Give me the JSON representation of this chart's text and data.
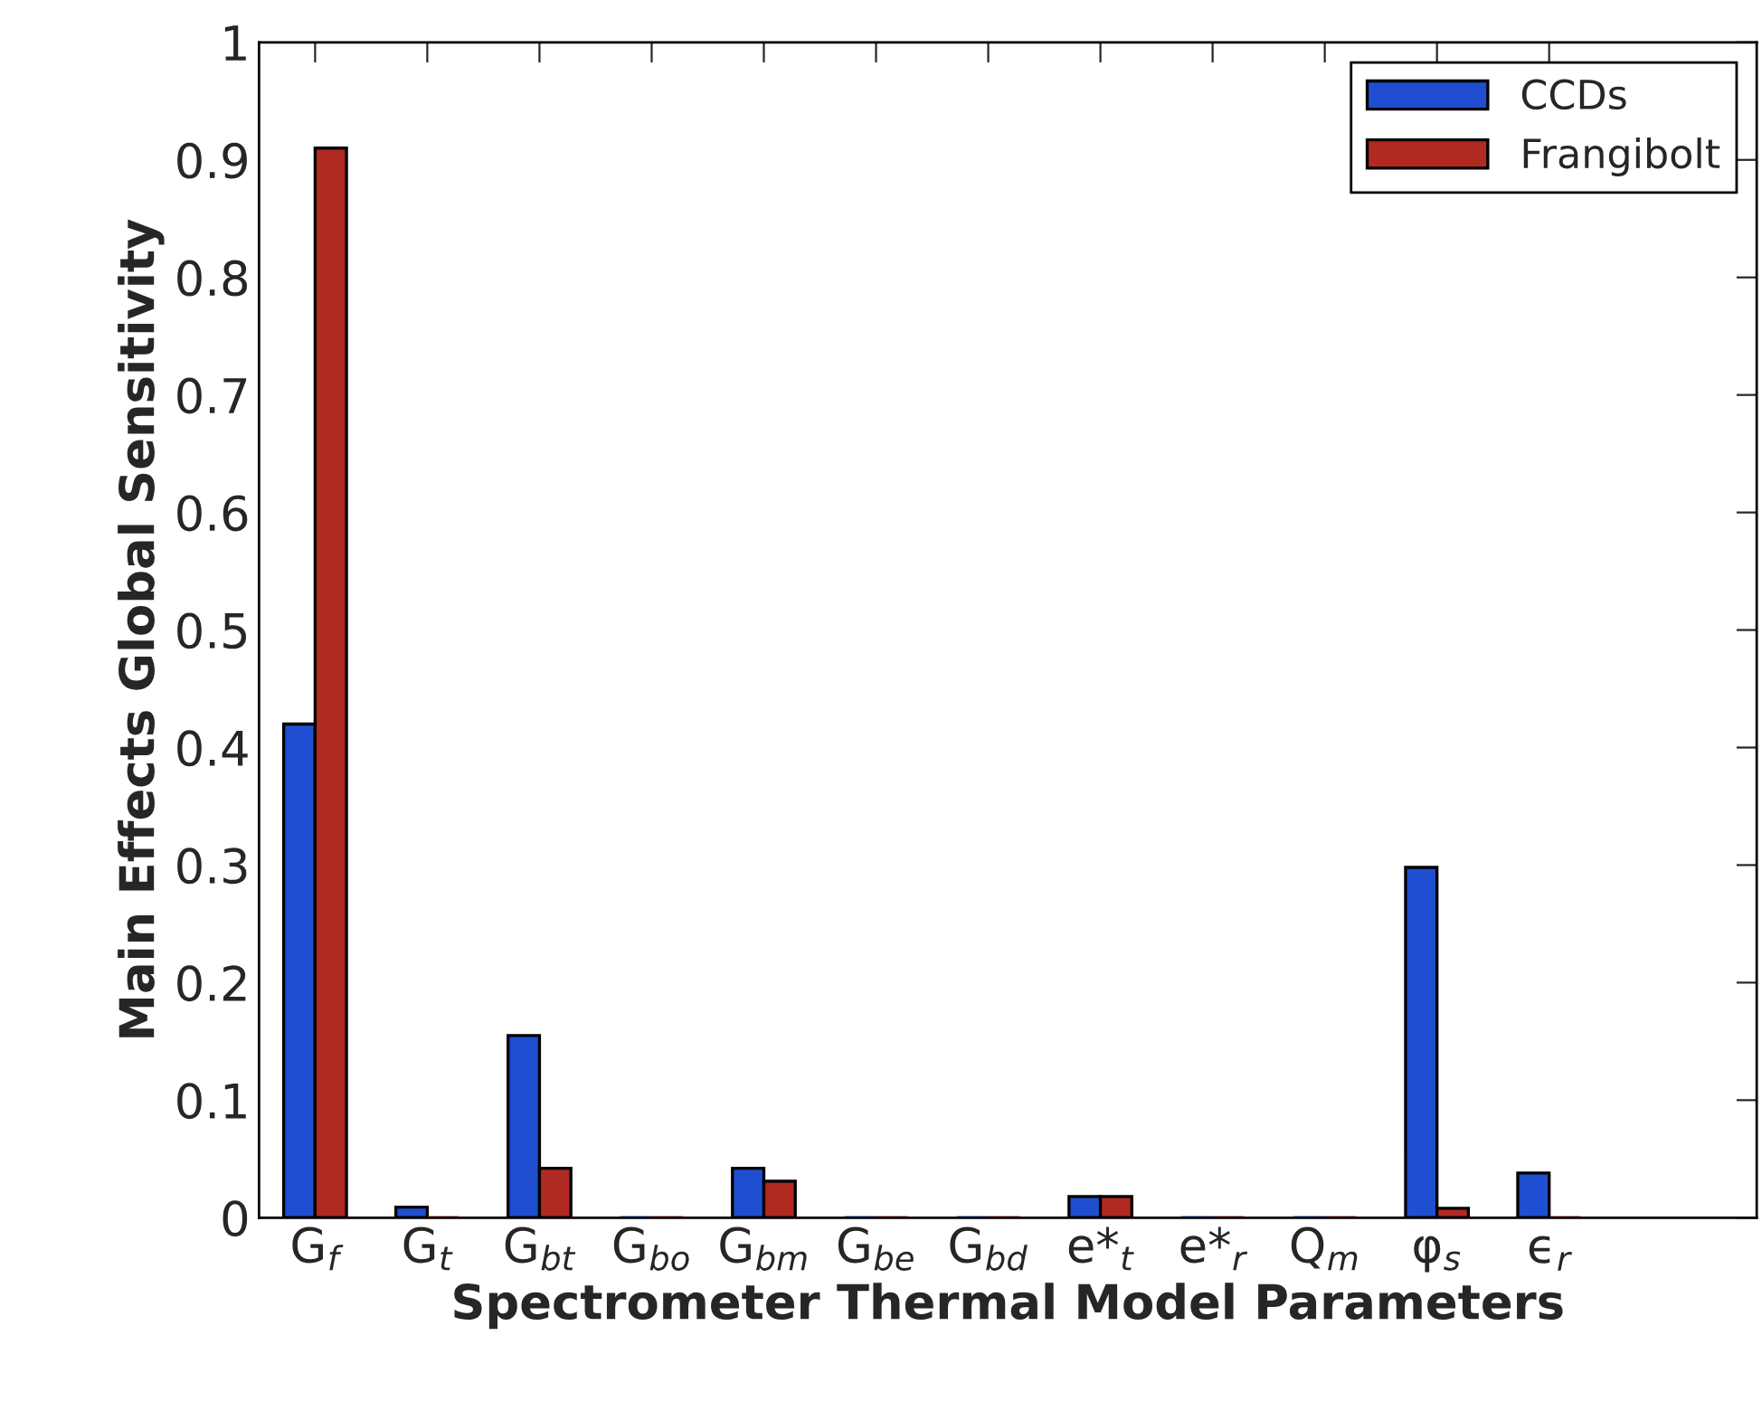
{
  "chart_data": {
    "type": "bar",
    "xlabel": "Spectrometer Thermal Model Parameters",
    "ylabel": "Main Effects Global Sensitivity",
    "categories": [
      "G$_{f}$",
      "G$_{t}$",
      "G$_{bt}$",
      "G$_{bo}$",
      "G$_{bm}$",
      "G$_{be}$",
      "G$_{bd}$",
      "e*$_{t}$",
      "e*$_{r}$",
      "Q$_{m}$",
      "φ$_{s}$",
      "ϵ$_{r}$"
    ],
    "series": [
      {
        "name": "CCDs",
        "color": "#1f4fd0",
        "values": [
          0.42,
          0.009,
          0.155,
          0,
          0.042,
          0,
          0,
          0.018,
          0,
          0,
          0.298,
          0.038
        ]
      },
      {
        "name": "Frangibolt",
        "color": "#b02a22",
        "values": [
          0.91,
          0,
          0.042,
          0,
          0.031,
          0,
          0,
          0.018,
          0,
          0,
          0.008,
          0
        ]
      }
    ],
    "ylim": [
      0,
      1
    ],
    "yticks": [
      0,
      0.1,
      0.2,
      0.3,
      0.4,
      0.5,
      0.6,
      0.7,
      0.8,
      0.9,
      1
    ],
    "grid": false,
    "legend": "top right"
  }
}
